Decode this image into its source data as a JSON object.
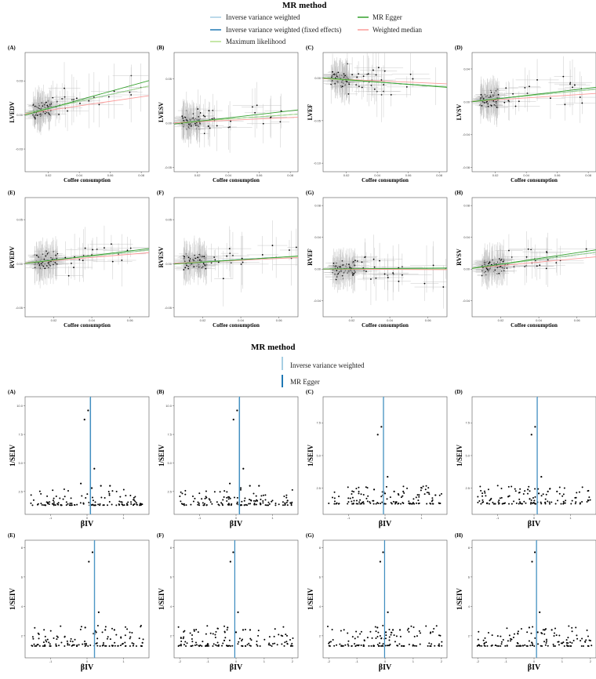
{
  "chart_data": [
    {
      "type": "scatter",
      "section": "scatter_plots",
      "legend_title": "MR method",
      "legend": [
        {
          "name": "Inverse variance weighted",
          "color": "#a6cee3"
        },
        {
          "name": "MR Egger",
          "color": "#33a02c"
        },
        {
          "name": "Inverse variance weighted (fixed effects)",
          "color": "#1f78b4"
        },
        {
          "name": "Weighted median",
          "color": "#fb9a99"
        },
        {
          "name": "Maximum likelihood",
          "color": "#b2df8a"
        }
      ],
      "xlabel": "Coffee consumption",
      "panels": [
        {
          "tag": "(A)",
          "ylabel": "LVEDV",
          "xlim": [
            0.005,
            0.085
          ],
          "xticks": [
            0.02,
            0.04,
            0.06,
            0.08
          ],
          "ylim": [
            -0.05,
            0.055
          ],
          "yticks": [
            -0.03,
            0.0,
            0.03
          ],
          "lines": {
            "ivw": [
              0.0,
              0.3
            ],
            "egger": [
              -0.002,
              0.38
            ],
            "wm": [
              0.0,
              0.2
            ]
          }
        },
        {
          "tag": "(B)",
          "ylabel": "LVESV",
          "xlim": [
            0.005,
            0.085
          ],
          "xticks": [
            0.02,
            0.04,
            0.06,
            0.08
          ],
          "ylim": [
            -0.055,
            0.08
          ],
          "yticks": [
            -0.05,
            0.0,
            0.05
          ],
          "lines": {
            "ivw": [
              0.0,
              0.12
            ],
            "egger": [
              -0.002,
              0.2
            ],
            "wm": [
              0.0,
              0.08
            ]
          }
        },
        {
          "tag": "(C)",
          "ylabel": "LVEF",
          "xlim": [
            0.005,
            0.085
          ],
          "xticks": [
            0.02,
            0.04,
            0.06,
            0.08
          ],
          "ylim": [
            -0.11,
            0.03
          ],
          "yticks": [
            -0.1,
            -0.05,
            0.0
          ],
          "lines": {
            "ivw": [
              0.0,
              -0.12
            ],
            "egger": [
              0.001,
              -0.14
            ],
            "wm": [
              0.0,
              -0.08
            ]
          }
        },
        {
          "tag": "(D)",
          "ylabel": "LVSV",
          "xlim": [
            0.005,
            0.085
          ],
          "xticks": [
            0.02,
            0.04,
            0.06,
            0.08
          ],
          "ylim": [
            -0.085,
            0.06
          ],
          "yticks": [
            -0.08,
            -0.04,
            0.0,
            0.04
          ],
          "lines": {
            "ivw": [
              0.0,
              0.18
            ],
            "egger": [
              -0.001,
              0.22
            ],
            "wm": [
              0.0,
              0.12
            ]
          }
        },
        {
          "tag": "(E)",
          "ylabel": "RVEDV",
          "xlim": [
            0.005,
            0.07
          ],
          "xticks": [
            0.02,
            0.04,
            0.06
          ],
          "ylim": [
            -0.06,
            0.075
          ],
          "yticks": [
            -0.05,
            0.0,
            0.05
          ],
          "lines": {
            "ivw": [
              0.0,
              0.22
            ],
            "egger": [
              -0.001,
              0.26
            ],
            "wm": [
              0.0,
              0.18
            ]
          }
        },
        {
          "tag": "(F)",
          "ylabel": "RVESV",
          "xlim": [
            0.005,
            0.07
          ],
          "xticks": [
            0.02,
            0.04,
            0.06
          ],
          "ylim": [
            -0.06,
            0.075
          ],
          "yticks": [
            -0.05,
            0.0,
            0.05
          ],
          "lines": {
            "ivw": [
              0.0,
              0.12
            ],
            "egger": [
              -0.001,
              0.14
            ],
            "wm": [
              0.0,
              0.1
            ]
          }
        },
        {
          "tag": "(G)",
          "ylabel": "RVEF",
          "xlim": [
            0.005,
            0.07
          ],
          "xticks": [
            0.02,
            0.04,
            0.06
          ],
          "ylim": [
            -0.06,
            0.09
          ],
          "yticks": [
            -0.04,
            0.0,
            0.04,
            0.08
          ],
          "lines": {
            "ivw": [
              0.0,
              0.0
            ],
            "egger": [
              0.0,
              0.02
            ],
            "wm": [
              0.0,
              -0.01
            ]
          }
        },
        {
          "tag": "(H)",
          "ylabel": "RVSV",
          "xlim": [
            0.005,
            0.07
          ],
          "xticks": [
            0.02,
            0.04,
            0.06
          ],
          "ylim": [
            -0.06,
            0.09
          ],
          "yticks": [
            -0.04,
            0.0,
            0.04,
            0.08
          ],
          "lines": {
            "ivw": [
              0.0,
              0.3
            ],
            "egger": [
              -0.001,
              0.36
            ],
            "wm": [
              0.0,
              0.22
            ]
          }
        }
      ]
    },
    {
      "type": "scatter",
      "section": "funnel_plots",
      "legend_title": "MR method",
      "legend": [
        {
          "name": "Inverse variance weighted",
          "color": "#a6cee3"
        },
        {
          "name": "MR Egger",
          "color": "#1f78b4"
        }
      ],
      "xlabel": "βIV",
      "ylabel": "1/SEIV",
      "panels": [
        {
          "tag": "(A)",
          "xlim": [
            -1.7,
            1.7
          ],
          "xticks": [
            -1,
            0,
            1
          ],
          "ylim": [
            0.5,
            10.8
          ],
          "yticks": [
            2.5,
            5.0,
            7.5,
            10.0
          ],
          "ivw": 0.08,
          "egger": 0.1
        },
        {
          "tag": "(B)",
          "xlim": [
            -1.7,
            1.7
          ],
          "xticks": [
            -1,
            0,
            1
          ],
          "ylim": [
            0.5,
            10.8
          ],
          "yticks": [
            2.5,
            5.0,
            7.5,
            10.0
          ],
          "ivw": 0.08,
          "egger": 0.1
        },
        {
          "tag": "(C)",
          "xlim": [
            -1.7,
            1.7
          ],
          "xticks": [
            -1,
            0,
            1
          ],
          "ylim": [
            0.5,
            9.5
          ],
          "yticks": [
            2.5,
            5.0,
            7.5
          ],
          "ivw": -0.05,
          "egger": -0.04
        },
        {
          "tag": "(D)",
          "xlim": [
            -1.7,
            1.7
          ],
          "xticks": [
            -1,
            0,
            1
          ],
          "ylim": [
            0.5,
            9.5
          ],
          "yticks": [
            2.5,
            5.0,
            7.5
          ],
          "ivw": 0.08,
          "egger": 0.09
        },
        {
          "tag": "(E)",
          "xlim": [
            -1.7,
            1.7
          ],
          "xticks": [
            -1,
            0,
            1
          ],
          "ylim": [
            0.5,
            8.5
          ],
          "yticks": [
            2,
            4,
            6,
            8
          ],
          "ivw": 0.2,
          "egger": 0.21
        },
        {
          "tag": "(F)",
          "xlim": [
            -2.2,
            2.2
          ],
          "xticks": [
            -2,
            -1,
            0,
            1,
            2
          ],
          "ylim": [
            0.5,
            8.5
          ],
          "yticks": [
            2,
            4,
            6,
            8
          ],
          "ivw": -0.05,
          "egger": -0.04
        },
        {
          "tag": "(G)",
          "xlim": [
            -2.2,
            2.2
          ],
          "xticks": [
            -2,
            -1,
            0,
            1,
            2
          ],
          "ylim": [
            0.5,
            8.5
          ],
          "yticks": [
            2,
            4,
            6,
            8
          ],
          "ivw": -0.02,
          "egger": -0.01
        },
        {
          "tag": "(H)",
          "xlim": [
            -2.2,
            2.2
          ],
          "xticks": [
            -2,
            -1,
            0,
            1,
            2
          ],
          "ylim": [
            0.5,
            8.5
          ],
          "yticks": [
            2,
            4,
            6,
            8
          ],
          "ivw": 0.08,
          "egger": 0.09
        }
      ]
    }
  ]
}
